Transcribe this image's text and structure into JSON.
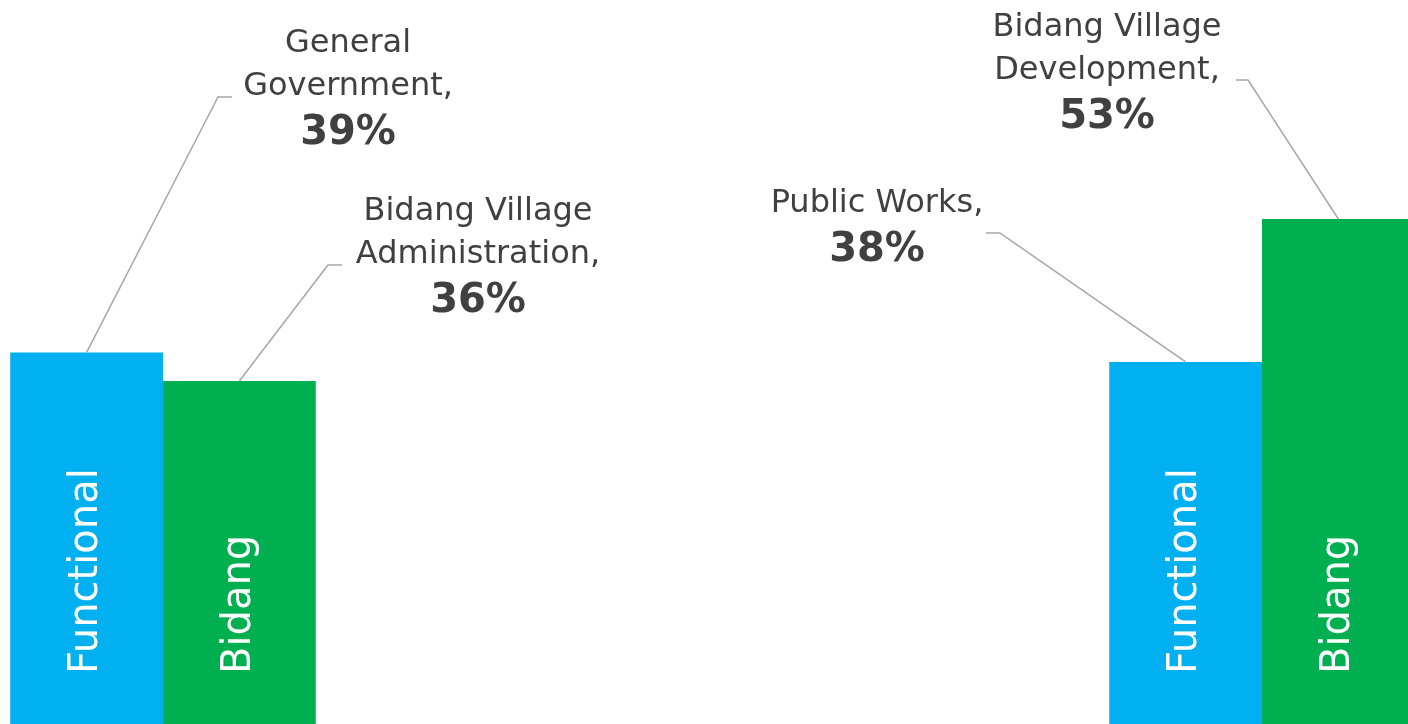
{
  "chart_data": {
    "type": "bar",
    "categories": [
      null,
      null
    ],
    "series": [
      {
        "name": "Functional",
        "color": "#00b0f0",
        "values": [
          39,
          38
        ],
        "value_labels": [
          "General Government, 39%",
          "Public Works, 38%"
        ]
      },
      {
        "name": "Bidang",
        "color": "#00b050",
        "values": [
          36,
          53
        ],
        "value_labels": [
          "Bidang Village Administration, 36%",
          "Bidang Village Development, 53%"
        ]
      }
    ],
    "legend": false,
    "tick_labels": false
  }
}
